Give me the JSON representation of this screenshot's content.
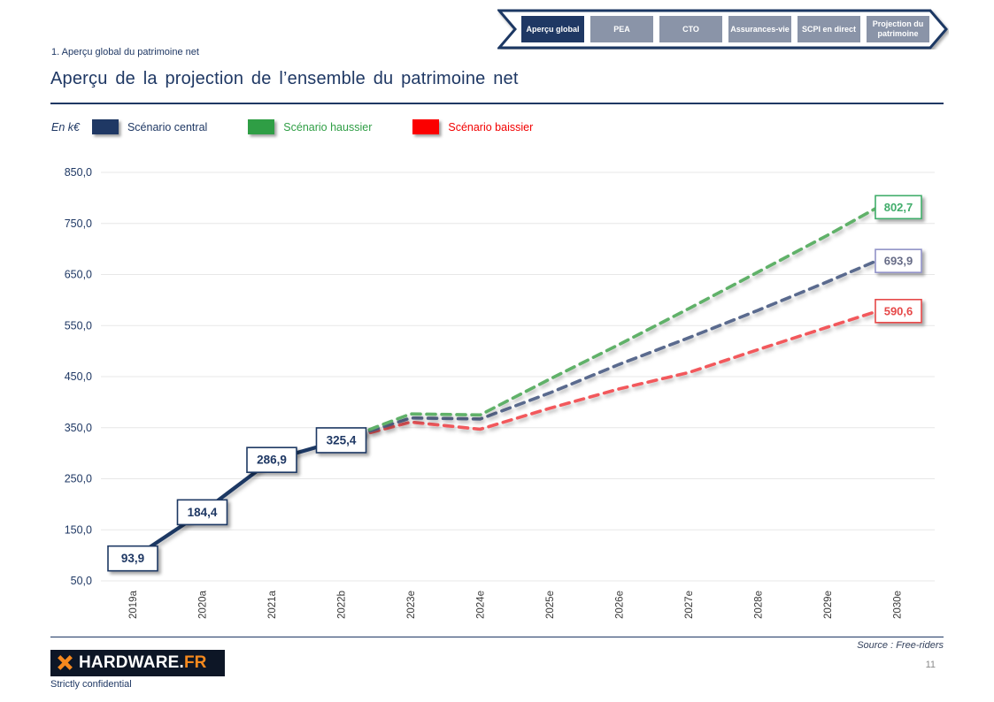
{
  "nav": {
    "tabs": [
      {
        "label": "Aperçu global",
        "active": true
      },
      {
        "label": "PEA",
        "active": false
      },
      {
        "label": "CTO",
        "active": false
      },
      {
        "label": "Assurances-vie",
        "active": false
      },
      {
        "label": "SCPI en direct",
        "active": false
      },
      {
        "label": "Projection du patrimoine",
        "active": false
      }
    ]
  },
  "header": {
    "breadcrumb": "1. Aperçu global du patrimoine net",
    "title": "Aperçu de la projection de l’ensemble du patrimoine net"
  },
  "legend": {
    "unit": "En k€",
    "items": [
      {
        "label": "Scénario central",
        "color": "#1f3864"
      },
      {
        "label": "Scénario haussier",
        "color": "#2f9e45"
      },
      {
        "label": "Scénario baissier",
        "color": "#fb0000"
      }
    ]
  },
  "chart_data": {
    "type": "line",
    "title": "Aperçu de la projection de l’ensemble du patrimoine net",
    "unit": "k€",
    "categories": [
      "2019a",
      "2020a",
      "2021a",
      "2022b",
      "2023e",
      "2024e",
      "2025e",
      "2026e",
      "2027e",
      "2028e",
      "2029e",
      "2030e"
    ],
    "ylim": [
      50,
      850
    ],
    "grid": "horizontal-only",
    "legend_position": "top-left",
    "yticks": [
      {
        "v": 850,
        "label": "850,0"
      },
      {
        "v": 750,
        "label": "750,0"
      },
      {
        "v": 650,
        "label": "650,0"
      },
      {
        "v": 550,
        "label": "550,0"
      },
      {
        "v": 450,
        "label": "450,0"
      },
      {
        "v": 350,
        "label": "350,0"
      },
      {
        "v": 250,
        "label": "250,0"
      },
      {
        "v": 150,
        "label": "150,0"
      },
      {
        "v": 50,
        "label": "50,0"
      }
    ],
    "series": [
      {
        "name": "Scénario baissier",
        "style": "dashed",
        "color": "#f2595b",
        "values": [
          null,
          null,
          null,
          325.4,
          361,
          347,
          388,
          426,
          458,
          503,
          547,
          590.6
        ],
        "end_label": {
          "text": "590,6",
          "color": "#e64848",
          "border": "#e64848",
          "dy": 7
        }
      },
      {
        "name": "Scénario central (projection)",
        "style": "dashed",
        "color": "#5a6b8e",
        "values": [
          null,
          null,
          null,
          325.4,
          369,
          367,
          418,
          474,
          526,
          580,
          636,
          693.9
        ],
        "end_label": {
          "text": "693,9",
          "color": "#666b86",
          "border": "#9192c8",
          "dy": 10
        }
      },
      {
        "name": "Scénario haussier",
        "style": "dashed",
        "color": "#61b169",
        "values": [
          null,
          null,
          null,
          325.4,
          377,
          375,
          445,
          513,
          583,
          655,
          727,
          802.7
        ],
        "end_label": {
          "text": "802,7",
          "color": "#41ad6b",
          "border": "#41ad6b",
          "dy": 12
        }
      },
      {
        "name": "Scénario central (historique)",
        "style": "solid",
        "color": "#1f3864",
        "values": [
          93.9,
          184.4,
          286.9,
          325.4,
          null,
          null,
          null,
          null,
          null,
          null,
          null,
          null
        ]
      }
    ],
    "point_labels": [
      {
        "index": 0,
        "text": "93,9"
      },
      {
        "index": 1,
        "text": "184,4"
      },
      {
        "index": 2,
        "text": "286,9"
      },
      {
        "index": 3,
        "text": "325,4"
      }
    ],
    "point_label_values": [
      93.9,
      184.4,
      286.9,
      325.4
    ]
  },
  "footer": {
    "logo_text": "HARDWARE.",
    "logo_suffix": "FR",
    "source": "Source : Free-riders",
    "page_number": "11",
    "confidential": "Strictly confidential"
  },
  "colors": {
    "navy": "#1f3864",
    "inactive_tab": "#8a94a8",
    "grid": "#e7e7e7",
    "orange": "#f6891e"
  }
}
